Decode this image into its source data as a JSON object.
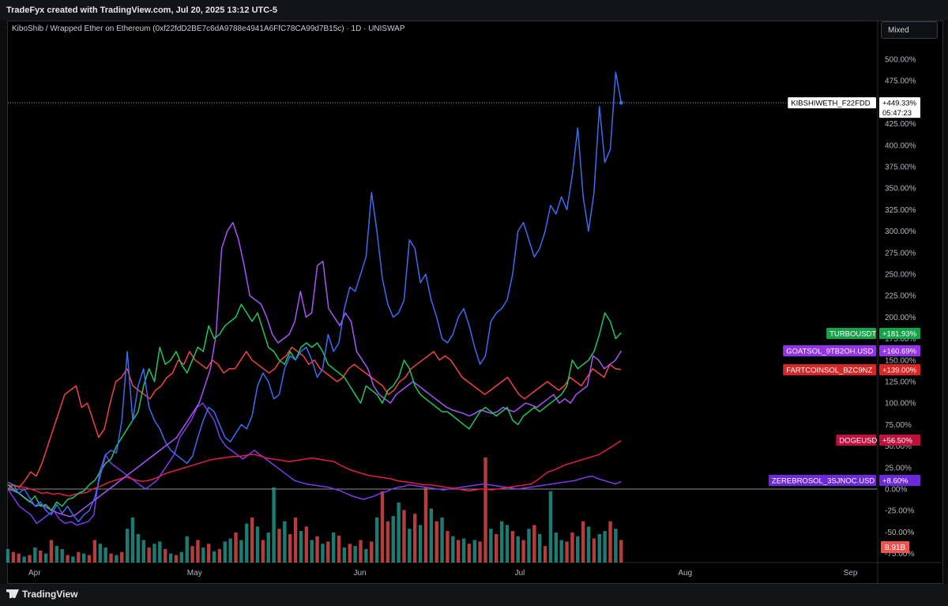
{
  "header": {
    "attribution": "TradeFyx created with TradingView.com, Jul 20, 2025 13:12 UTC-5"
  },
  "chart_title": "KiboShib / Wrapped Ether on Ethereum (0xf22fdD2BE7c6dA9788e4941A6FfC78CA99d7B15c) · 1D · UNISWAP",
  "scale_mode": "Mixed",
  "footer": {
    "brand": "TradingView"
  },
  "chart_data": {
    "type": "line",
    "x_labels": [
      "Apr",
      "May",
      "Jun",
      "Jul",
      "Aug",
      "Sep"
    ],
    "y_ticks": [
      "500.00%",
      "475.00%",
      "450.00%",
      "425.00%",
      "400.00%",
      "375.00%",
      "350.00%",
      "325.00%",
      "300.00%",
      "275.00%",
      "250.00%",
      "225.00%",
      "200.00%",
      "175.00%",
      "150.00%",
      "125.00%",
      "100.00%",
      "75.00%",
      "50.00%",
      "25.00%",
      "0.00%",
      "-25.00%",
      "-50.00%",
      "-75.00%"
    ],
    "y_tick_values": [
      500,
      475,
      450,
      425,
      400,
      375,
      350,
      325,
      300,
      275,
      250,
      225,
      200,
      175,
      150,
      125,
      100,
      75,
      50,
      25,
      0,
      -25,
      -50,
      -75
    ],
    "ylim": [
      -80,
      520
    ],
    "x_start": "2025-03-27",
    "last_date": "2025-07-20",
    "countdown": "05:47:23",
    "volume_label": "8.91B",
    "volume_label_color": "#ef5350",
    "volume_up_color": "#26a69a",
    "volume_down_color": "#ef5350",
    "series": [
      {
        "name": "KIBSHIWETH_F22FDD",
        "color": "#3d6cf0",
        "last_label": "+449.33%",
        "label_bg": "#ffffff",
        "label_fg": "#000000",
        "name_bg": "#ffffff",
        "name_fg": "#000000",
        "values": [
          8,
          5,
          -5,
          0,
          -10,
          -20,
          -15,
          -25,
          -30,
          -18,
          -28,
          -20,
          -30,
          -38,
          -30,
          -25,
          -10,
          15,
          40,
          45,
          42,
          80,
          160,
          80,
          120,
          140,
          95,
          80,
          70,
          55,
          45,
          40,
          35,
          30,
          38,
          60,
          80,
          95,
          90,
          75,
          60,
          55,
          65,
          75,
          70,
          85,
          120,
          135,
          125,
          105,
          110,
          140,
          155,
          150,
          160,
          165,
          150,
          130,
          140,
          180,
          160,
          170,
          210,
          235,
          230,
          250,
          270,
          345,
          300,
          245,
          215,
          200,
          205,
          220,
          290,
          280,
          240,
          250,
          220,
          200,
          175,
          170,
          180,
          200,
          210,
          190,
          165,
          145,
          155,
          195,
          205,
          210,
          220,
          250,
          300,
          310,
          290,
          270,
          280,
          300,
          330,
          320,
          340,
          325,
          365,
          420,
          340,
          300,
          345,
          445,
          380,
          395,
          485,
          449.33
        ]
      },
      {
        "name": "TURBOUSDT",
        "color": "#22c55e",
        "last_label": "+181.93%",
        "label_bg": "#16a34a",
        "label_fg": "#ffffff",
        "name_bg": "#16a34a",
        "name_fg": "#ffffff",
        "values": [
          5,
          0,
          -5,
          -10,
          -15,
          -8,
          -20,
          -18,
          -25,
          -15,
          -20,
          -12,
          -10,
          -5,
          -2,
          5,
          10,
          20,
          30,
          35,
          50,
          60,
          70,
          80,
          90,
          120,
          140,
          125,
          165,
          145,
          150,
          160,
          145,
          135,
          150,
          165,
          160,
          190,
          175,
          180,
          190,
          195,
          200,
          215,
          205,
          195,
          205,
          185,
          165,
          160,
          150,
          145,
          160,
          150,
          165,
          170,
          165,
          170,
          160,
          145,
          140,
          135,
          130,
          120,
          110,
          100,
          120,
          115,
          110,
          100,
          115,
          120,
          130,
          150,
          140,
          120,
          110,
          105,
          100,
          95,
          90,
          90,
          85,
          80,
          75,
          70,
          80,
          90,
          95,
          90,
          85,
          90,
          95,
          80,
          75,
          85,
          90,
          95,
          90,
          95,
          100,
          105,
          110,
          120,
          150,
          140,
          145,
          150,
          160,
          180,
          205,
          195,
          175,
          181.93
        ]
      },
      {
        "name": "GOATSOL_9TB2OH.USD",
        "color": "#a855f7",
        "last_label": "+160.69%",
        "label_bg": "#9333ea",
        "label_fg": "#ffffff",
        "name_bg": "#9333ea",
        "name_fg": "#ffffff",
        "values": [
          0,
          -2,
          -5,
          -10,
          -15,
          -20,
          -18,
          -22,
          -25,
          -28,
          -30,
          -32,
          -30,
          -25,
          -20,
          -15,
          -10,
          -5,
          0,
          5,
          10,
          15,
          20,
          25,
          30,
          35,
          40,
          45,
          50,
          55,
          60,
          70,
          80,
          90,
          100,
          120,
          140,
          180,
          280,
          300,
          310,
          290,
          260,
          225,
          220,
          215,
          200,
          180,
          170,
          175,
          180,
          195,
          230,
          200,
          205,
          260,
          265,
          210,
          200,
          190,
          205,
          195,
          160,
          150,
          140,
          120,
          110,
          105,
          100,
          110,
          115,
          120,
          125,
          120,
          115,
          110,
          105,
          100,
          95,
          92,
          90,
          88,
          85,
          88,
          92,
          90,
          88,
          90,
          95,
          92,
          90,
          95,
          100,
          98,
          95,
          100,
          105,
          110,
          100,
          105,
          100,
          110,
          115,
          120,
          155,
          150,
          140,
          145,
          150,
          160.69
        ]
      },
      {
        "name": "FARTCOINSOL_BZC9NZ",
        "color": "#ef4444",
        "last_label": "+139.00%",
        "label_bg": "#dc2626",
        "label_fg": "#ffffff",
        "name_bg": "#dc2626",
        "name_fg": "#ffffff",
        "values": [
          0,
          5,
          2,
          10,
          20,
          15,
          30,
          50,
          70,
          90,
          110,
          115,
          120,
          95,
          100,
          80,
          60,
          70,
          100,
          125,
          130,
          140,
          120,
          115,
          110,
          105,
          115,
          120,
          130,
          135,
          150,
          145,
          160,
          150,
          145,
          140,
          150,
          145,
          135,
          140,
          140,
          150,
          160,
          150,
          145,
          140,
          135,
          140,
          150,
          155,
          165,
          160,
          155,
          145,
          150,
          140,
          135,
          130,
          125,
          130,
          140,
          145,
          140,
          135,
          130,
          125,
          120,
          110,
          115,
          125,
          130,
          140,
          145,
          150,
          155,
          160,
          150,
          155,
          150,
          140,
          130,
          125,
          120,
          115,
          110,
          115,
          120,
          125,
          130,
          120,
          110,
          105,
          110,
          115,
          120,
          125,
          120,
          115,
          120,
          130,
          125,
          120,
          130,
          140,
          135,
          130,
          145,
          140,
          139
        ]
      },
      {
        "name": "DOGEUSD",
        "color": "#e11d48",
        "last_label": "+56.50%",
        "label_bg": "#be123c",
        "label_fg": "#ffffff",
        "name_bg": "#be123c",
        "name_fg": "#ffffff",
        "values": [
          5,
          4,
          3,
          2,
          0,
          -2,
          -5,
          -4,
          -6,
          -5,
          -7,
          -8,
          -6,
          -5,
          -4,
          0,
          2,
          5,
          8,
          10,
          12,
          14,
          12,
          10,
          9,
          10,
          12,
          15,
          18,
          20,
          22,
          24,
          26,
          28,
          30,
          32,
          34,
          35,
          36,
          37,
          38,
          38,
          39,
          40,
          40,
          38,
          36,
          35,
          34,
          33,
          32,
          33,
          34,
          35,
          36,
          35,
          34,
          33,
          32,
          28,
          25,
          22,
          20,
          18,
          16,
          15,
          14,
          13,
          12,
          10,
          9,
          8,
          7,
          6,
          5,
          5,
          4,
          3,
          2,
          1,
          0,
          -1,
          -2,
          -1,
          0,
          0,
          -1,
          0,
          1,
          2,
          3,
          4,
          5,
          6,
          10,
          15,
          20,
          22,
          25,
          28,
          30,
          32,
          34,
          36,
          38,
          40,
          44,
          48,
          52,
          56.5
        ]
      },
      {
        "name": "ZEREBROSOL_3SJNOC.USD",
        "color": "#7c3aed",
        "last_label": "+8.60%",
        "label_bg": "#6d28d9",
        "label_fg": "#ffffff",
        "name_bg": "#6d28d9",
        "name_fg": "#ffffff",
        "values": [
          0,
          -10,
          -20,
          -25,
          -30,
          -40,
          -35,
          -30,
          -25,
          -35,
          -40,
          -38,
          -42,
          -40,
          -38,
          -30,
          20,
          40,
          30,
          25,
          20,
          15,
          10,
          5,
          0,
          5,
          10,
          20,
          30,
          40,
          60,
          70,
          80,
          95,
          100,
          90,
          80,
          60,
          50,
          45,
          40,
          35,
          40,
          45,
          40,
          35,
          30,
          25,
          20,
          15,
          10,
          8,
          6,
          5,
          4,
          3,
          2,
          0,
          -2,
          -5,
          -8,
          -10,
          -12,
          -10,
          -8,
          -5,
          -3,
          0,
          2,
          3,
          5,
          4,
          3,
          2,
          1,
          0,
          -1,
          0,
          1,
          2,
          3,
          4,
          5,
          6,
          5,
          4,
          3,
          2,
          1,
          0,
          1,
          2,
          3,
          4,
          5,
          6,
          7,
          8,
          9,
          10,
          12,
          14,
          15,
          12,
          10,
          8,
          6,
          8.6
        ]
      }
    ],
    "volume": [
      18,
      14,
      12,
      8,
      10,
      20,
      16,
      12,
      30,
      22,
      18,
      10,
      8,
      14,
      12,
      10,
      30,
      25,
      20,
      12,
      10,
      14,
      45,
      60,
      38,
      30,
      20,
      25,
      28,
      18,
      12,
      10,
      14,
      35,
      22,
      30,
      20,
      25,
      15,
      18,
      28,
      32,
      40,
      30,
      52,
      60,
      48,
      30,
      40,
      100,
      45,
      55,
      38,
      60,
      42,
      48,
      30,
      35,
      25,
      28,
      40,
      36,
      20,
      25,
      22,
      30,
      18,
      28,
      60,
      95,
      55,
      62,
      80,
      70,
      45,
      65,
      50,
      100,
      72,
      55,
      60,
      42,
      35,
      30,
      32,
      25,
      30,
      28,
      140,
      45,
      38,
      55,
      50,
      42,
      35,
      30,
      45,
      50,
      38,
      22,
      95,
      40,
      30,
      28,
      40,
      35,
      55,
      48,
      32,
      38,
      42,
      55,
      45,
      30
    ],
    "volume_up": [
      1,
      0,
      0,
      1,
      0,
      1,
      0,
      1,
      0,
      1,
      1,
      0,
      1,
      0,
      1,
      0,
      0,
      1,
      1,
      0,
      1,
      0,
      1,
      1,
      1,
      1,
      0,
      1,
      1,
      0,
      1,
      0,
      1,
      1,
      0,
      0,
      1,
      0,
      1,
      0,
      1,
      1,
      0,
      1,
      1,
      0,
      1,
      0,
      1,
      1,
      0,
      1,
      0,
      0,
      1,
      0,
      1,
      0,
      1,
      0,
      1,
      0,
      1,
      0,
      1,
      0,
      1,
      0,
      1,
      0,
      0,
      1,
      1,
      0,
      1,
      0,
      1,
      0,
      1,
      0,
      1,
      0,
      1,
      0,
      1,
      0,
      1,
      0,
      0,
      1,
      0,
      1,
      1,
      0,
      1,
      0,
      1,
      0,
      1,
      0,
      1,
      1,
      1,
      0,
      0,
      1,
      0,
      1,
      0,
      1,
      1,
      0,
      1,
      0
    ]
  }
}
